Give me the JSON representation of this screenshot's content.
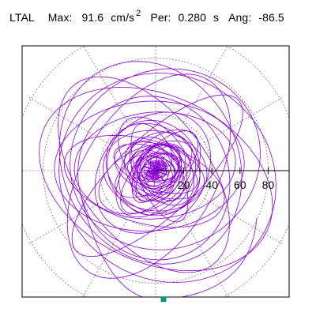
{
  "header": {
    "station": "LTAL",
    "max_label": "Max:",
    "max_value": "91.6",
    "max_unit": "cm/s",
    "max_unit_exp": "2",
    "per_label": "Per:",
    "per_value": "0.280",
    "per_unit": "s",
    "ang_label": "Ang:",
    "ang_value": "-86.5"
  },
  "chart_data": {
    "type": "scatter",
    "description_units": "horizontal ground-motion particle trace in polar coordinates",
    "radial_ticks": [
      "20",
      "40",
      "60",
      "80"
    ],
    "radial_tick_values": [
      20,
      40,
      60,
      80
    ],
    "radial_max": 110,
    "grid": true,
    "grid_style": "dotted",
    "peak_marker": {
      "radius": 91.6,
      "angle_deg": -86.5
    },
    "trace_color": "#8a00d4",
    "marker_color": "#00997a"
  }
}
